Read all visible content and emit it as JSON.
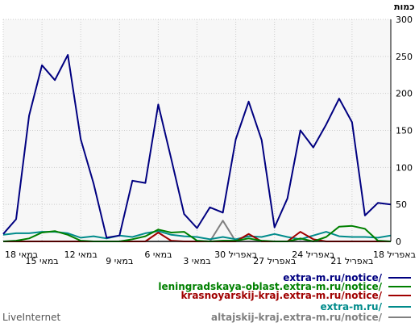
{
  "chart_data": {
    "type": "line",
    "ylabel": "כמות",
    "ylim": [
      0,
      300
    ],
    "yticks": [
      0,
      50,
      100,
      150,
      200,
      250,
      300
    ],
    "x": [
      "18 במאי",
      "17 במאי",
      "16 במאי",
      "15 במאי",
      "14 במאי",
      "13 במאי",
      "12 במאי",
      "11 במאי",
      "10 במאי",
      "9 במאי",
      "8 במאי",
      "7 במאי",
      "6 במאי",
      "5 במאי",
      "4 במאי",
      "3 במאי",
      "2 במאי",
      "1 במאי",
      "30 באפריל",
      "29 באפריל",
      "28 באפריל",
      "27 באפריל",
      "26 באפריל",
      "25 באפריל",
      "24 באפריל",
      "23 באפריל",
      "22 באפריל",
      "21 באפריל",
      "20 באפריל",
      "19 באפריל",
      "18 באפריל"
    ],
    "xtick_labels": [
      "18 במאי",
      "15 במאי",
      "12 במאי",
      "9 במאי",
      "6 במאי",
      "3 במאי",
      "30 באפריל",
      "27 באפריל",
      "24 באפריל",
      "21 באפריל",
      "18 באפריל"
    ],
    "grid": true,
    "legend_position": "bottom-right",
    "series": [
      {
        "name": "extra-m.ru/notice/",
        "color": "#000080",
        "values": [
          10,
          30,
          170,
          238,
          218,
          252,
          138,
          78,
          5,
          8,
          82,
          79,
          185,
          112,
          37,
          18,
          46,
          39,
          138,
          189,
          137,
          19,
          58,
          150,
          127,
          158,
          193,
          161,
          35,
          52,
          50
        ]
      },
      {
        "name": "leningradskaya-oblast.extra-m.ru/notice/",
        "color": "#008000",
        "values": [
          0,
          1,
          4,
          12,
          14,
          9,
          1,
          0,
          0,
          0,
          3,
          7,
          16,
          12,
          13,
          1,
          0,
          1,
          1,
          4,
          1,
          0,
          0,
          4,
          0,
          6,
          20,
          21,
          17,
          1,
          0
        ]
      },
      {
        "name": "krasnoyarskij-kraj.extra-m.ru/notice/",
        "color": "#a00000",
        "values": [
          0,
          0,
          0,
          0,
          0,
          0,
          0,
          0,
          0,
          0,
          0,
          0,
          12,
          1,
          0,
          0,
          0,
          0,
          0,
          10,
          0,
          0,
          0,
          13,
          3,
          0,
          0,
          0,
          0,
          0,
          0
        ]
      },
      {
        "name": "extra-m.ru/",
        "color": "#008b8b",
        "values": [
          9,
          11,
          11,
          13,
          13,
          11,
          5,
          7,
          4,
          8,
          6,
          11,
          14,
          9,
          7,
          6,
          3,
          6,
          3,
          7,
          6,
          10,
          6,
          3,
          8,
          13,
          7,
          6,
          6,
          5,
          8
        ]
      },
      {
        "name": "altajskij-kraj.extra-m.ru/notice/",
        "color": "#808080",
        "values": [
          0,
          0,
          0,
          0,
          0,
          0,
          0,
          0,
          0,
          0,
          0,
          0,
          0,
          0,
          0,
          0,
          0,
          28,
          0,
          0,
          0,
          0,
          0,
          0,
          0,
          0,
          0,
          0,
          0,
          0,
          0
        ]
      }
    ]
  },
  "brand": "LiveInternet"
}
